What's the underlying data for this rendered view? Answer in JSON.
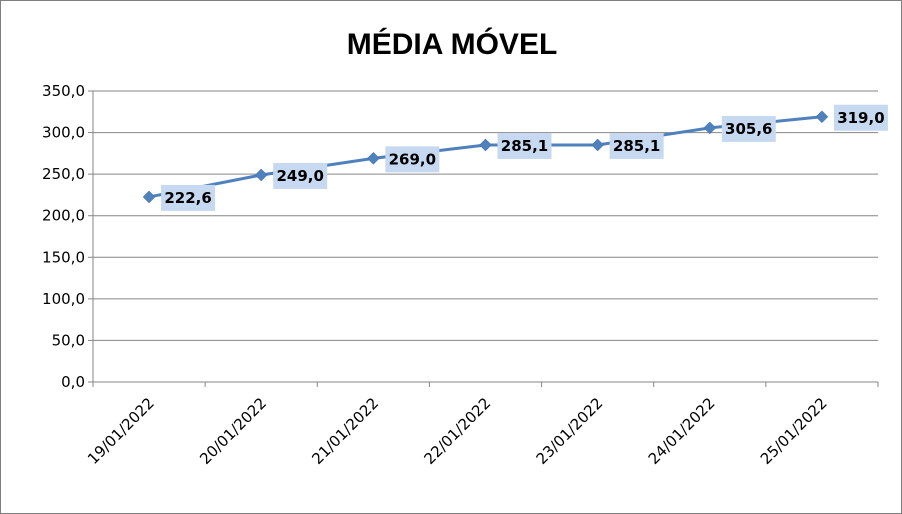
{
  "chart_data": {
    "type": "line",
    "title": "MÉDIA MÓVEL",
    "xlabel": "",
    "ylabel": "",
    "categories": [
      "19/01/2022",
      "20/01/2022",
      "21/01/2022",
      "22/01/2022",
      "23/01/2022",
      "24/01/2022",
      "25/01/2022"
    ],
    "series": [
      {
        "values": [
          222.6,
          249.0,
          269.0,
          285.1,
          285.1,
          305.6,
          319.0
        ],
        "labels": [
          "222,6",
          "249,0",
          "269,0",
          "285,1",
          "285,1",
          "305,6",
          "319,0"
        ],
        "color": "#4f81bd"
      }
    ],
    "ylim": [
      0,
      350
    ],
    "yticks": [
      0,
      50,
      100,
      150,
      200,
      250,
      300,
      350
    ],
    "ytick_labels": [
      "0,0",
      "50,0",
      "100,0",
      "150,0",
      "200,0",
      "250,0",
      "300,0",
      "350,0"
    ],
    "grid": true,
    "legend": "none",
    "label_bg_color": "#c6d9f1",
    "grid_color": "#868686"
  }
}
